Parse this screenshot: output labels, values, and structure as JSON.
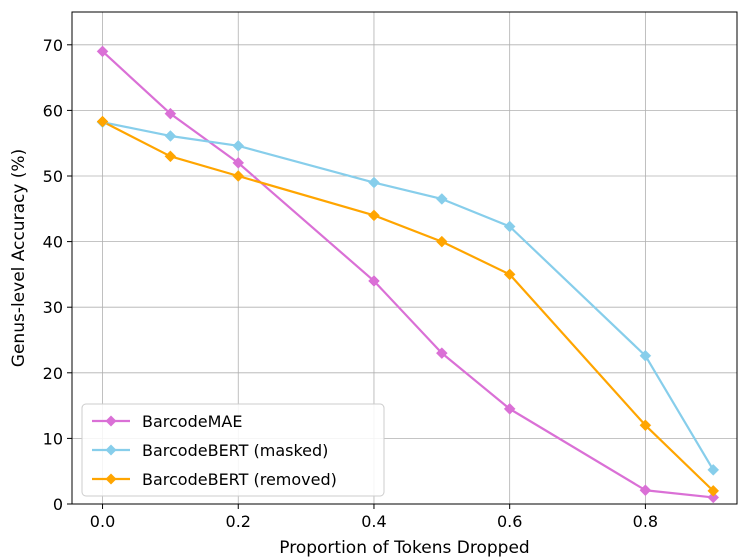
{
  "chart_data": {
    "type": "line",
    "title": "",
    "xlabel": "Proportion of Tokens Dropped",
    "ylabel": "Genus-level Accuracy (%)",
    "xlim": [
      -0.045,
      0.935
    ],
    "ylim": [
      0,
      75
    ],
    "xticks": [
      0.0,
      0.2,
      0.4,
      0.6,
      0.8
    ],
    "xtick_labels": [
      "0.0",
      "0.2",
      "0.4",
      "0.6",
      "0.8"
    ],
    "yticks": [
      0,
      10,
      20,
      30,
      40,
      50,
      60,
      70
    ],
    "ytick_labels": [
      "0",
      "10",
      "20",
      "30",
      "40",
      "50",
      "60",
      "70"
    ],
    "grid": true,
    "legend_position": "bottom-left",
    "x": [
      0.0,
      0.1,
      0.2,
      0.4,
      0.5,
      0.6,
      0.8,
      0.9
    ],
    "series": [
      {
        "name": "BarcodeMAE",
        "color": "#DA70D6",
        "values": [
          69.0,
          59.5,
          52.0,
          34.0,
          23.0,
          14.5,
          2.1,
          1.0
        ]
      },
      {
        "name": "BarcodeBERT (masked)",
        "color": "#87CEEB",
        "values": [
          58.2,
          56.1,
          54.6,
          49.0,
          46.5,
          42.3,
          22.6,
          5.2
        ]
      },
      {
        "name": "BarcodeBERT (removed)",
        "color": "#FFA500",
        "values": [
          58.3,
          53.0,
          50.0,
          44.0,
          40.0,
          35.0,
          12.0,
          2.0
        ]
      }
    ]
  }
}
